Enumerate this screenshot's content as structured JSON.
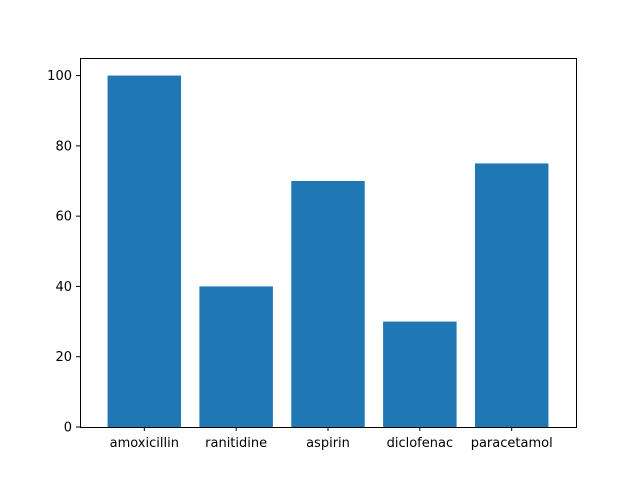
{
  "colors": {
    "bar": "#1f77b4",
    "axis": "#000000",
    "background": "#ffffff"
  },
  "chart_data": {
    "type": "bar",
    "categories": [
      "amoxicillin",
      "ranitidine",
      "aspirin",
      "diclofenac",
      "paracetamol"
    ],
    "values": [
      100,
      40,
      70,
      30,
      75
    ],
    "title": "",
    "xlabel": "",
    "ylabel": "",
    "ylim": [
      0,
      105
    ],
    "yticks": [
      0,
      20,
      40,
      60,
      80,
      100
    ],
    "grid": false,
    "legend": "none"
  }
}
